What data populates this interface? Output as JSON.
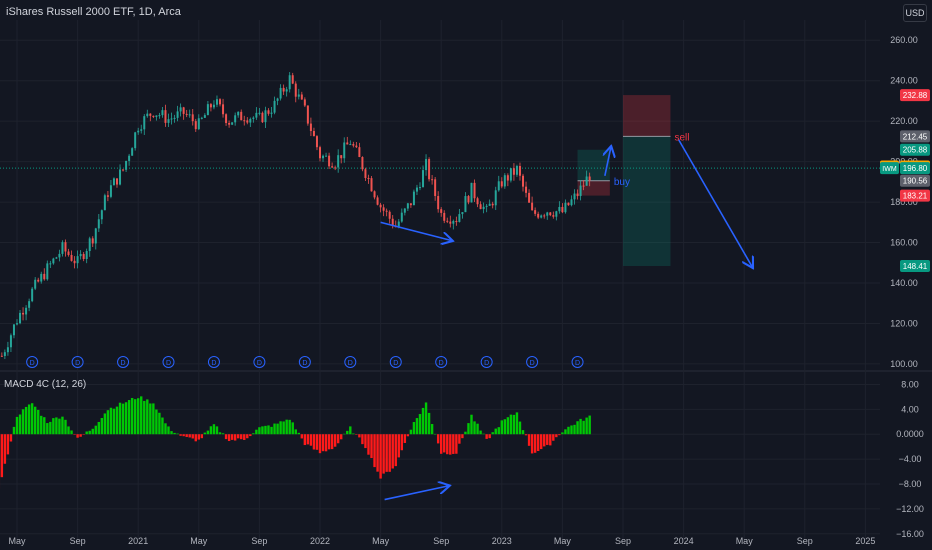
{
  "header": {
    "title": "iShares Russell 2000 ETF, 1D, Arca",
    "currency_button": "USD"
  },
  "colors": {
    "bg": "#131722",
    "grid": "#1e222d",
    "up": "#26a69a",
    "down": "#ef5350",
    "arrow": "#2962ff",
    "macd_up": "#00c805",
    "macd_down": "#ff1a1a"
  },
  "chart_data": [
    {
      "type": "candlestick",
      "ylim": [
        97,
        270
      ],
      "yticks": [
        "100.00",
        "120.00",
        "140.00",
        "160.00",
        "180.00",
        "200.00",
        "220.00",
        "240.00",
        "260.00"
      ],
      "ytick_values": [
        100,
        120,
        140,
        160,
        180,
        200,
        220,
        240,
        260
      ],
      "x_labels": [
        "May",
        "Sep",
        "2021",
        "May",
        "Sep",
        "2022",
        "May",
        "Sep",
        "2023",
        "May",
        "Sep",
        "2024",
        "May",
        "Sep",
        "2025"
      ],
      "x_label_dates": [
        "2020-05",
        "2020-09",
        "2021-01",
        "2021-05",
        "2021-09",
        "2022-01",
        "2022-05",
        "2022-09",
        "2023-01",
        "2023-05",
        "2023-09",
        "2024-01",
        "2024-05",
        "2024-09",
        "2025-01"
      ],
      "price_path": [
        [
          "2020-04",
          104
        ],
        [
          "2020-05",
          122
        ],
        [
          "2020-06",
          136
        ],
        [
          "2020-07",
          147
        ],
        [
          "2020-08",
          157
        ],
        [
          "2020-09",
          150
        ],
        [
          "2020-10",
          163
        ],
        [
          "2020-11",
          185
        ],
        [
          "2020-12",
          196
        ],
        [
          "2021-01",
          218
        ],
        [
          "2021-02",
          225
        ],
        [
          "2021-03",
          221
        ],
        [
          "2021-04",
          224
        ],
        [
          "2021-05",
          218
        ],
        [
          "2021-06",
          230
        ],
        [
          "2021-07",
          220
        ],
        [
          "2021-08",
          223
        ],
        [
          "2021-09",
          221
        ],
        [
          "2021-10",
          228
        ],
        [
          "2021-11",
          241
        ],
        [
          "2021-12",
          225
        ],
        [
          "2022-01",
          203
        ],
        [
          "2022-02",
          200
        ],
        [
          "2022-03",
          210
        ],
        [
          "2022-04",
          195
        ],
        [
          "2022-05",
          178
        ],
        [
          "2022-06",
          168
        ],
        [
          "2022-07",
          180
        ],
        [
          "2022-08",
          198
        ],
        [
          "2022-09",
          174
        ],
        [
          "2022-10",
          172
        ],
        [
          "2022-11",
          186
        ],
        [
          "2022-12",
          175
        ],
        [
          "2023-01",
          190
        ],
        [
          "2023-02",
          196
        ],
        [
          "2023-03",
          174
        ],
        [
          "2023-04",
          176
        ],
        [
          "2023-05",
          175
        ],
        [
          "2023-06",
          184
        ],
        [
          "2023-07",
          196
        ]
      ],
      "price_labels": [
        {
          "text": "232.88",
          "value": 232.88,
          "color": "#f23645"
        },
        {
          "text": "212.45",
          "value": 212.45,
          "color": "#5d606b"
        },
        {
          "text": "205.88",
          "value": 205.88,
          "color": "#089981"
        },
        {
          "text": "197.57",
          "value": 197.57,
          "color": "#f7a600",
          "prefix": "Pre"
        },
        {
          "text": "196.80",
          "value": 196.8,
          "color": "#089981",
          "prefix": "IWM"
        },
        {
          "text": "190.56",
          "value": 190.56,
          "color": "#5d606b"
        },
        {
          "text": "183.21",
          "value": 183.21,
          "color": "#f23645"
        },
        {
          "text": "148.41",
          "value": 148.41,
          "color": "#089981"
        }
      ],
      "annotations": [
        {
          "text": "buy",
          "date": "2023-08",
          "value": 190
        },
        {
          "text": "sell",
          "date": "2023-12",
          "value": 212
        }
      ],
      "positions": [
        {
          "kind": "long",
          "from": "2023-06",
          "to": "2023-08",
          "entry": 190.56,
          "target": 205.88,
          "stop": 183.21
        },
        {
          "kind": "short",
          "from": "2023-09",
          "to": "2023-12",
          "entry": 212.45,
          "target": 148.41,
          "stop": 232.88
        }
      ],
      "dividend_marker": "D",
      "dividend_dates": [
        "2020-06",
        "2020-09",
        "2020-12",
        "2021-03",
        "2021-06",
        "2021-09",
        "2021-12",
        "2022-03",
        "2022-06",
        "2022-09",
        "2022-12",
        "2023-03",
        "2023-06"
      ]
    },
    {
      "type": "histogram",
      "title": "MACD 4C (12, 26)",
      "ylim": [
        -17,
        10
      ],
      "yticks": [
        "8.00",
        "4.00",
        "0.0000",
        "−4.00",
        "−8.00",
        "−12.00",
        "−16.00"
      ],
      "ytick_values": [
        8,
        4,
        0,
        -4,
        -8,
        -12,
        -16
      ],
      "macd_path": [
        [
          "2020-03",
          -15
        ],
        [
          "2020-04",
          -7
        ],
        [
          "2020-05",
          3
        ],
        [
          "2020-06",
          5
        ],
        [
          "2020-07",
          2
        ],
        [
          "2020-08",
          3
        ],
        [
          "2020-09",
          -0.8
        ],
        [
          "2020-10",
          1
        ],
        [
          "2020-11",
          4
        ],
        [
          "2020-12",
          5
        ],
        [
          "2021-01",
          6
        ],
        [
          "2021-02",
          5
        ],
        [
          "2021-03",
          1
        ],
        [
          "2021-04",
          -0.5
        ],
        [
          "2021-05",
          -1
        ],
        [
          "2021-06",
          1.5
        ],
        [
          "2021-07",
          -1
        ],
        [
          "2021-08",
          -0.8
        ],
        [
          "2021-09",
          1
        ],
        [
          "2021-10",
          1.5
        ],
        [
          "2021-11",
          2.5
        ],
        [
          "2021-12",
          -1.5
        ],
        [
          "2022-01",
          -3
        ],
        [
          "2022-02",
          -2
        ],
        [
          "2022-03",
          1
        ],
        [
          "2022-04",
          -2
        ],
        [
          "2022-05",
          -7
        ],
        [
          "2022-06",
          -5
        ],
        [
          "2022-07",
          1
        ],
        [
          "2022-08",
          5
        ],
        [
          "2022-09",
          -3
        ],
        [
          "2022-10",
          -3
        ],
        [
          "2022-11",
          3
        ],
        [
          "2022-12",
          -1
        ],
        [
          "2023-01",
          2
        ],
        [
          "2023-02",
          3.5
        ],
        [
          "2023-03",
          -3
        ],
        [
          "2023-04",
          -2
        ],
        [
          "2023-05",
          0.5
        ],
        [
          "2023-06",
          2
        ],
        [
          "2023-07",
          3
        ]
      ]
    }
  ]
}
